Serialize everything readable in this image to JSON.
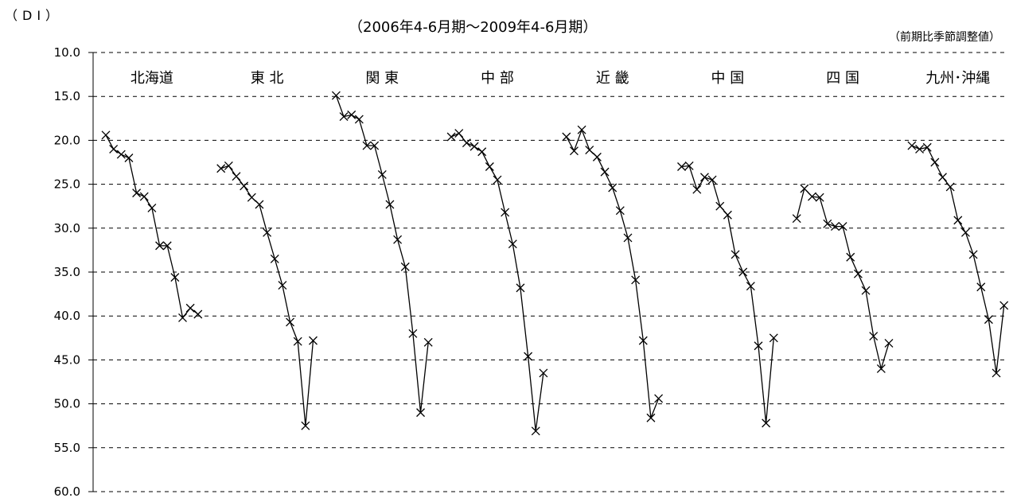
{
  "chart_data": {
    "type": "line",
    "subtitle": "（2006年4-6月期～2009年4-6月期）",
    "ylabel": "（DI）",
    "note": "（前期比季節調整値）",
    "ylim": [
      10,
      60
    ],
    "y_inverted": true,
    "yticks": [
      "10.0",
      "15.0",
      "20.0",
      "25.0",
      "30.0",
      "35.0",
      "40.0",
      "45.0",
      "50.0",
      "55.0",
      "60.0"
    ],
    "grid": true,
    "marker": "x",
    "series": [
      {
        "name": "北海道",
        "values": [
          19.4,
          21.0,
          21.6,
          22.0,
          26.0,
          26.4,
          27.7,
          32.0,
          32.0,
          35.6,
          40.2,
          39.1,
          39.8
        ]
      },
      {
        "name": "東 北",
        "values": [
          23.2,
          22.9,
          24.1,
          25.2,
          26.5,
          27.3,
          30.5,
          33.5,
          36.5,
          40.7,
          42.9,
          52.5,
          42.8
        ]
      },
      {
        "name": "関 東",
        "values": [
          14.9,
          17.3,
          17.1,
          17.6,
          20.6,
          20.6,
          23.9,
          27.3,
          31.3,
          34.4,
          42.0,
          51.0,
          43.0
        ]
      },
      {
        "name": "中 部",
        "values": [
          19.6,
          19.2,
          20.3,
          20.7,
          21.3,
          23.0,
          24.5,
          28.2,
          31.8,
          36.8,
          44.6,
          53.1,
          46.5
        ]
      },
      {
        "name": "近 畿",
        "values": [
          19.6,
          21.2,
          18.8,
          21.1,
          21.9,
          23.6,
          25.4,
          28.0,
          31.1,
          35.9,
          42.8,
          51.6,
          49.4
        ]
      },
      {
        "name": "中 国",
        "values": [
          23.0,
          22.9,
          25.6,
          24.2,
          24.5,
          27.5,
          28.5,
          33.0,
          35.0,
          36.6,
          43.4,
          52.2,
          42.5
        ]
      },
      {
        "name": "四 国",
        "values": [
          28.9,
          25.5,
          26.4,
          26.5,
          29.5,
          29.8,
          29.8,
          33.3,
          35.2,
          37.1,
          42.3,
          46.0,
          43.1
        ]
      },
      {
        "name": "九州･沖縄",
        "values": [
          20.6,
          21.0,
          20.8,
          22.5,
          24.2,
          25.3,
          29.1,
          30.5,
          33.0,
          36.7,
          40.4,
          46.5,
          38.8
        ]
      }
    ]
  }
}
